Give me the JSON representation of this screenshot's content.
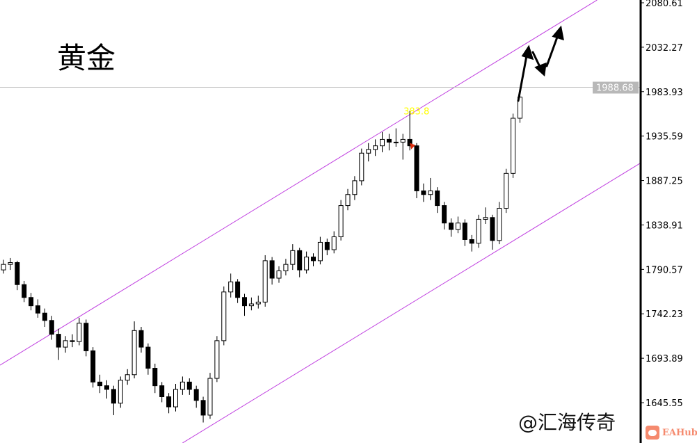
{
  "title": "黄金",
  "watermark": "@汇海传奇",
  "logo": "EAHub",
  "colors": {
    "channel": "#c040e0",
    "bull_fill": "#ffffff",
    "bear_fill": "#000000",
    "candle_border": "#000000",
    "price_line": "#c0c0c0",
    "price_tag": "#b8b8b8",
    "peak_label": "#ffff00",
    "marker": "#e03010",
    "annotation_arrows": "#000000"
  },
  "chart_data": {
    "type": "candlestick",
    "title": "黄金",
    "y_ticks": [
      "2080.61",
      "2032.27",
      "1983.93",
      "1935.59",
      "1887.25",
      "1838.91",
      "1790.57",
      "1742.23",
      "1693.89",
      "1645.55"
    ],
    "ylim": [
      1600,
      2086
    ],
    "axis_position": "right",
    "grid": false,
    "current_price": "1988.68",
    "peak_label": "383.8",
    "candles_ohlc": [
      [
        1790,
        1801,
        1786,
        1796
      ],
      [
        1796,
        1803,
        1790,
        1798
      ],
      [
        1798,
        1800,
        1768,
        1774
      ],
      [
        1774,
        1778,
        1755,
        1760
      ],
      [
        1760,
        1765,
        1746,
        1751
      ],
      [
        1751,
        1758,
        1738,
        1743
      ],
      [
        1743,
        1748,
        1728,
        1735
      ],
      [
        1735,
        1740,
        1714,
        1720
      ],
      [
        1720,
        1726,
        1692,
        1706
      ],
      [
        1706,
        1718,
        1700,
        1713
      ],
      [
        1713,
        1720,
        1706,
        1712
      ],
      [
        1712,
        1738,
        1708,
        1732
      ],
      [
        1732,
        1736,
        1696,
        1702
      ],
      [
        1702,
        1706,
        1662,
        1668
      ],
      [
        1668,
        1676,
        1656,
        1664
      ],
      [
        1664,
        1670,
        1650,
        1660
      ],
      [
        1660,
        1664,
        1632,
        1645
      ],
      [
        1645,
        1674,
        1640,
        1670
      ],
      [
        1670,
        1682,
        1665,
        1676
      ],
      [
        1676,
        1734,
        1672,
        1724
      ],
      [
        1724,
        1728,
        1700,
        1706
      ],
      [
        1706,
        1710,
        1676,
        1683
      ],
      [
        1683,
        1688,
        1656,
        1664
      ],
      [
        1664,
        1668,
        1646,
        1652
      ],
      [
        1652,
        1656,
        1634,
        1641
      ],
      [
        1641,
        1666,
        1636,
        1660
      ],
      [
        1660,
        1674,
        1654,
        1668
      ],
      [
        1668,
        1672,
        1654,
        1660
      ],
      [
        1660,
        1664,
        1640,
        1648
      ],
      [
        1648,
        1652,
        1624,
        1632
      ],
      [
        1632,
        1678,
        1628,
        1672
      ],
      [
        1672,
        1718,
        1668,
        1713
      ],
      [
        1713,
        1772,
        1708,
        1766
      ],
      [
        1766,
        1786,
        1760,
        1777
      ],
      [
        1777,
        1780,
        1754,
        1760
      ],
      [
        1760,
        1764,
        1740,
        1751
      ],
      [
        1751,
        1760,
        1746,
        1753
      ],
      [
        1753,
        1762,
        1748,
        1755
      ],
      [
        1755,
        1806,
        1750,
        1800
      ],
      [
        1800,
        1804,
        1774,
        1781
      ],
      [
        1781,
        1794,
        1776,
        1789
      ],
      [
        1789,
        1802,
        1784,
        1796
      ],
      [
        1796,
        1818,
        1790,
        1811
      ],
      [
        1811,
        1814,
        1782,
        1790
      ],
      [
        1790,
        1810,
        1786,
        1804
      ],
      [
        1804,
        1808,
        1794,
        1800
      ],
      [
        1800,
        1826,
        1796,
        1820
      ],
      [
        1820,
        1824,
        1806,
        1812
      ],
      [
        1812,
        1832,
        1808,
        1826
      ],
      [
        1826,
        1866,
        1822,
        1860
      ],
      [
        1860,
        1878,
        1855,
        1872
      ],
      [
        1872,
        1892,
        1866,
        1887
      ],
      [
        1887,
        1922,
        1882,
        1917
      ],
      [
        1917,
        1928,
        1908,
        1921
      ],
      [
        1921,
        1932,
        1914,
        1925
      ],
      [
        1925,
        1940,
        1918,
        1932
      ],
      [
        1932,
        1938,
        1920,
        1929
      ],
      [
        1929,
        1944,
        1924,
        1929
      ],
      [
        1929,
        1938,
        1910,
        1932
      ],
      [
        1932,
        1963,
        1920,
        1925
      ],
      [
        1925,
        1928,
        1868,
        1876
      ],
      [
        1876,
        1884,
        1864,
        1872
      ],
      [
        1872,
        1890,
        1866,
        1876
      ],
      [
        1876,
        1880,
        1852,
        1860
      ],
      [
        1860,
        1864,
        1834,
        1841
      ],
      [
        1841,
        1846,
        1826,
        1834
      ],
      [
        1834,
        1848,
        1830,
        1841
      ],
      [
        1841,
        1845,
        1816,
        1823
      ],
      [
        1823,
        1828,
        1810,
        1819
      ],
      [
        1819,
        1850,
        1814,
        1845
      ],
      [
        1845,
        1858,
        1840,
        1847
      ],
      [
        1847,
        1850,
        1812,
        1822
      ],
      [
        1822,
        1864,
        1818,
        1857
      ],
      [
        1857,
        1900,
        1852,
        1895
      ],
      [
        1895,
        1960,
        1890,
        1955
      ],
      [
        1955,
        1988,
        1950,
        1978
      ]
    ],
    "peak_candle_index": 59,
    "channel_lines": [
      {
        "name": "upper",
        "from": [
          -0.5,
          1686.4
        ],
        "to": [
          86.2,
          2083.6
        ]
      },
      {
        "name": "lower",
        "from": [
          26,
          1601.7
        ],
        "to": [
          92.4,
          1905.8
        ]
      }
    ]
  }
}
